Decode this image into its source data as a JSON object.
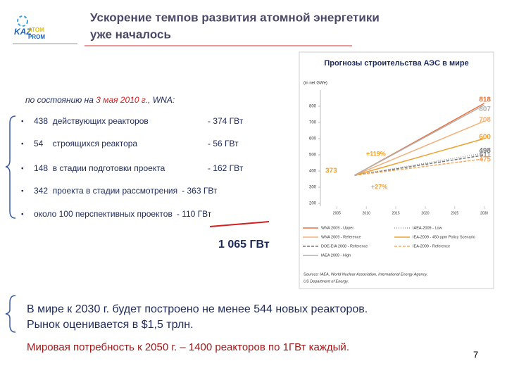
{
  "logo": {
    "kaz": "KAZ",
    "atom": "ATOM",
    "prom": "PROM"
  },
  "title": [
    "Ускорение темпов развития атомной энергетики",
    "уже началось"
  ],
  "status": {
    "prefix": "по состоянию на ",
    "date": "3 мая 2010 г.",
    "suffix": ", WNA:"
  },
  "bullets": [
    {
      "text": "438  действующих реакторов",
      "capacity": "- 374 ГВт"
    },
    {
      "text": "54    строящихся реактора",
      "capacity": "- 56 ГВт"
    },
    {
      "text": "148  в стадии подготовки проекта",
      "capacity": "- 162 ГВт"
    },
    {
      "text": "342  проекта в стадии рассмотрения",
      "capacity": "- 363 ГВт"
    },
    {
      "text": "около 100 перспективных проектов",
      "capacity": "- 110 ГВт"
    }
  ],
  "total": "1 065 ГВт",
  "conclusion": [
    "В мире к 2030 г. будет построено не менее 544 новых реакторов.",
    "Рынок оценивается в $1,5 трлн."
  ],
  "demand": "Мировая потребность к 2050 г. – 1400 реакторов по 1ГВт каждый.",
  "page_number": "7",
  "forecast_chart": {
    "type": "line",
    "title": "Прогнозы строительства АЭС в мире",
    "y_axis_label": "(in net GWe)",
    "x": [
      2008,
      2030
    ],
    "xlim": [
      2004,
      2031
    ],
    "xticks": [
      2005,
      2010,
      2015,
      2020,
      2025,
      2030
    ],
    "ylim": [
      200,
      900
    ],
    "yticks": [
      200,
      300,
      400,
      500,
      600,
      700,
      800
    ],
    "annotations": [
      "+119%",
      "+27%"
    ],
    "series": [
      {
        "name": "WNA 2009 - Upper",
        "color": "#e8743a",
        "style": "solid",
        "values": [
          373,
          818
        ]
      },
      {
        "name": "IAEA-2009 - Low",
        "color": "#9a9a9a",
        "style": "dotted",
        "values": [
          373,
          511
        ]
      },
      {
        "name": "WNA 2009 - Reference",
        "color": "#f2b07a",
        "style": "solid",
        "values": [
          373,
          708
        ]
      },
      {
        "name": "IEA-2009 - 450 ppm Policy Scenario",
        "color": "#f0a030",
        "style": "solid",
        "values": [
          373,
          600
        ]
      },
      {
        "name": "DOE-EIA 2008 - Reference",
        "color": "#777777",
        "style": "dashed",
        "values": [
          373,
          498
        ]
      },
      {
        "name": "IEA-2009 - Reference",
        "color": "#f5a860",
        "style": "dashed",
        "values": [
          373,
          475
        ]
      },
      {
        "name": "IAEA 2009 - High",
        "color": "#b0b0b0",
        "style": "solid",
        "values": [
          373,
          807
        ]
      }
    ],
    "sources": [
      "Sources: IAEA, World Nuclear Association, International Energy Agency,",
      "US Department of Energy."
    ]
  }
}
